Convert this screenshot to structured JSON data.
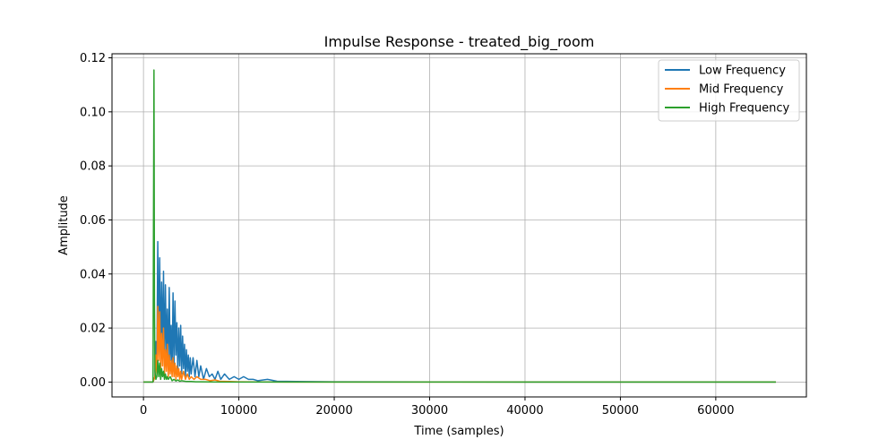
{
  "chart_data": {
    "type": "line",
    "title": "Impulse Response - treated_big_room",
    "xlabel": "Time (samples)",
    "ylabel": "Amplitude",
    "xlim": [
      -3300,
      69500
    ],
    "ylim": [
      -0.0055,
      0.1215
    ],
    "xticks": [
      0,
      10000,
      20000,
      30000,
      40000,
      50000,
      60000
    ],
    "yticks": [
      0.0,
      0.02,
      0.04,
      0.06,
      0.08,
      0.1,
      0.12
    ],
    "ytick_labels": [
      "0.00",
      "0.02",
      "0.04",
      "0.06",
      "0.08",
      "0.10",
      "0.12"
    ],
    "grid": true,
    "legend_position": "top-right",
    "series": [
      {
        "name": "Low Frequency",
        "color": "#1f77b4",
        "x": [
          0,
          900,
          1000,
          1100,
          1200,
          1300,
          1400,
          1500,
          1600,
          1700,
          1800,
          1900,
          2000,
          2100,
          2200,
          2300,
          2400,
          2500,
          2600,
          2700,
          2800,
          2900,
          3000,
          3100,
          3200,
          3300,
          3400,
          3500,
          3600,
          3700,
          3800,
          3900,
          4000,
          4100,
          4200,
          4300,
          4400,
          4500,
          4600,
          4700,
          4800,
          4900,
          5000,
          5200,
          5400,
          5600,
          5800,
          6000,
          6300,
          6600,
          6900,
          7200,
          7500,
          7800,
          8100,
          8500,
          9000,
          9500,
          10000,
          10500,
          11000,
          11500,
          12000,
          13000,
          14000,
          16000,
          20000,
          30000,
          40000,
          50000,
          60000,
          66300
        ],
        "values": [
          0,
          0,
          0,
          0.001,
          0.002,
          0.015,
          0.005,
          0.052,
          0.01,
          0.046,
          0.008,
          0.037,
          0.012,
          0.041,
          0.006,
          0.036,
          0.01,
          0.027,
          0.005,
          0.035,
          0.008,
          0.021,
          0.004,
          0.033,
          0.006,
          0.03,
          0.01,
          0.022,
          0.004,
          0.02,
          0.006,
          0.021,
          0.003,
          0.017,
          0.005,
          0.014,
          0.002,
          0.012,
          0.004,
          0.01,
          0.002,
          0.009,
          0.003,
          0.009,
          0.002,
          0.008,
          0.002,
          0.006,
          0.001,
          0.005,
          0.002,
          0.003,
          0.001,
          0.004,
          0.001,
          0.003,
          0.001,
          0.002,
          0.001,
          0.002,
          0.001,
          0.001,
          0.0005,
          0.001,
          0.0003,
          0.0002,
          0.0001,
          5e-05,
          2e-05,
          0,
          0,
          0
        ]
      },
      {
        "name": "Mid Frequency",
        "color": "#ff7f0e",
        "x": [
          0,
          900,
          1000,
          1100,
          1200,
          1300,
          1400,
          1500,
          1600,
          1700,
          1800,
          1900,
          2000,
          2100,
          2200,
          2300,
          2400,
          2500,
          2600,
          2700,
          2800,
          2900,
          3000,
          3100,
          3200,
          3300,
          3400,
          3500,
          3600,
          3700,
          3800,
          3900,
          4000,
          4200,
          4400,
          4600,
          4800,
          5000,
          5300,
          5600,
          6000,
          6500,
          7000,
          7500,
          8000,
          9000,
          10000,
          12000,
          15000,
          20000,
          30000,
          40000,
          50000,
          60000,
          66300
        ],
        "values": [
          0,
          0,
          0,
          0.001,
          0.002,
          0.01,
          0.003,
          0.028,
          0.008,
          0.026,
          0.004,
          0.018,
          0.006,
          0.02,
          0.003,
          0.012,
          0.004,
          0.014,
          0.002,
          0.01,
          0.003,
          0.008,
          0.002,
          0.009,
          0.002,
          0.007,
          0.001,
          0.006,
          0.002,
          0.005,
          0.001,
          0.004,
          0.001,
          0.004,
          0.001,
          0.003,
          0.001,
          0.002,
          0.001,
          0.002,
          0.001,
          0.001,
          0.0005,
          0.0008,
          0.0003,
          0.0002,
          0.0001,
          5e-05,
          0,
          0,
          0,
          0,
          0,
          0,
          0
        ]
      },
      {
        "name": "High Frequency",
        "color": "#2ca02c",
        "x": [
          0,
          900,
          1000,
          1050,
          1100,
          1150,
          1200,
          1300,
          1400,
          1500,
          1600,
          1700,
          1800,
          1900,
          2000,
          2100,
          2200,
          2300,
          2400,
          2500,
          2600,
          2800,
          3000,
          3200,
          3400,
          3600,
          3800,
          4000,
          4500,
          5000,
          5500,
          6000,
          7000,
          8000,
          10000,
          15000,
          20000,
          30000,
          40000,
          50000,
          60000,
          66300
        ],
        "values": [
          0,
          0,
          0,
          0.06,
          0.1155,
          0.03,
          0.004,
          0.001,
          0.002,
          0.008,
          0.002,
          0.007,
          0.001,
          0.005,
          0.002,
          0.004,
          0.001,
          0.003,
          0.001,
          0.002,
          0.001,
          0.002,
          0.0005,
          0.001,
          0.0004,
          0.0008,
          0.0003,
          0.0005,
          0.0002,
          0.0002,
          0.0001,
          0.0001,
          5e-05,
          0,
          0,
          0,
          0,
          0,
          0,
          0,
          0,
          0
        ]
      }
    ]
  }
}
